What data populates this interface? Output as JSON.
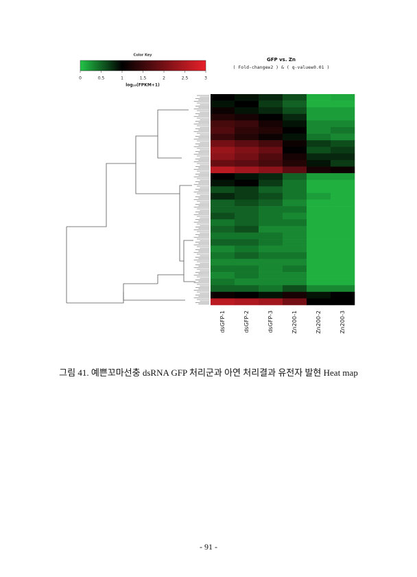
{
  "chart_data": {
    "type": "heatmap",
    "title": "GFP vs. Zn",
    "subtitle": "( Fold-change≥2 ) & ( q-value≤0.01 )",
    "color_key_title": "Color Key",
    "color_key_label": "log₁₀(FPKM+1)",
    "colorbar_lim": [
      0,
      3
    ],
    "colorbar_ticks": [
      0,
      0.5,
      1,
      1.5,
      2,
      2.5,
      3
    ],
    "colors": [
      "#22c447",
      "#000000",
      "#e8202a"
    ],
    "color_stops": [
      0,
      1,
      3
    ],
    "columns": [
      "dsGFP-1",
      "dsGFP-2",
      "dsGFP-3",
      "Zn200-1",
      "Zn200-2",
      "Zn200-3"
    ],
    "values": [
      [
        1.0,
        0.9,
        0.8,
        0.6,
        0.1,
        0.15
      ],
      [
        0.9,
        1.0,
        0.7,
        0.5,
        0.1,
        0.1
      ],
      [
        1.1,
        0.9,
        0.8,
        0.6,
        0.2,
        0.2
      ],
      [
        1.3,
        1.2,
        1.0,
        0.8,
        0.2,
        0.2
      ],
      [
        1.6,
        1.5,
        1.2,
        0.9,
        0.3,
        0.3
      ],
      [
        1.7,
        1.4,
        1.3,
        1.0,
        0.3,
        0.4
      ],
      [
        1.5,
        1.3,
        1.1,
        0.9,
        0.4,
        0.3
      ],
      [
        2.0,
        1.8,
        1.6,
        1.1,
        0.7,
        0.6
      ],
      [
        2.3,
        2.1,
        1.9,
        1.0,
        0.6,
        0.7
      ],
      [
        2.2,
        2.0,
        1.7,
        1.2,
        0.8,
        0.8
      ],
      [
        1.9,
        1.8,
        1.6,
        1.3,
        0.9,
        0.7
      ],
      [
        2.6,
        2.4,
        2.2,
        1.8,
        1.2,
        1.1
      ],
      [
        1.0,
        0.9,
        0.8,
        0.5,
        0.2,
        0.2
      ],
      [
        0.9,
        1.0,
        0.7,
        0.4,
        0.1,
        0.1
      ],
      [
        0.6,
        0.7,
        0.5,
        0.4,
        0.1,
        0.1
      ],
      [
        0.8,
        0.7,
        0.6,
        0.4,
        0.2,
        0.1
      ],
      [
        0.5,
        0.6,
        0.5,
        0.3,
        0.1,
        0.1
      ],
      [
        0.5,
        0.5,
        0.4,
        0.4,
        0.1,
        0.1
      ],
      [
        0.6,
        0.5,
        0.4,
        0.3,
        0.1,
        0.1
      ],
      [
        0.4,
        0.5,
        0.4,
        0.4,
        0.1,
        0.1
      ],
      [
        0.5,
        0.6,
        0.3,
        0.3,
        0.1,
        0.1
      ],
      [
        0.4,
        0.4,
        0.4,
        0.3,
        0.1,
        0.1
      ],
      [
        0.5,
        0.5,
        0.4,
        0.3,
        0.1,
        0.1
      ],
      [
        0.3,
        0.4,
        0.3,
        0.3,
        0.1,
        0.1
      ],
      [
        0.4,
        0.5,
        0.4,
        0.4,
        0.1,
        0.1
      ],
      [
        0.3,
        0.3,
        0.3,
        0.3,
        0.1,
        0.1
      ],
      [
        0.4,
        0.4,
        0.3,
        0.4,
        0.1,
        0.1
      ],
      [
        0.3,
        0.4,
        0.3,
        0.3,
        0.1,
        0.1
      ],
      [
        0.4,
        0.3,
        0.3,
        0.3,
        0.1,
        0.1
      ],
      [
        0.5,
        0.5,
        0.4,
        0.6,
        0.3,
        0.3
      ],
      [
        1.1,
        1.0,
        0.9,
        1.2,
        0.9,
        1.0
      ],
      [
        2.6,
        2.5,
        2.4,
        2.0,
        1.0,
        1.0
      ]
    ]
  },
  "caption": "그림 41. 예쁜꼬마선충 dsRNA GFP 처리군과 아연 처리결과 유전자 발현 Heat map",
  "page_number": "- 91 -"
}
